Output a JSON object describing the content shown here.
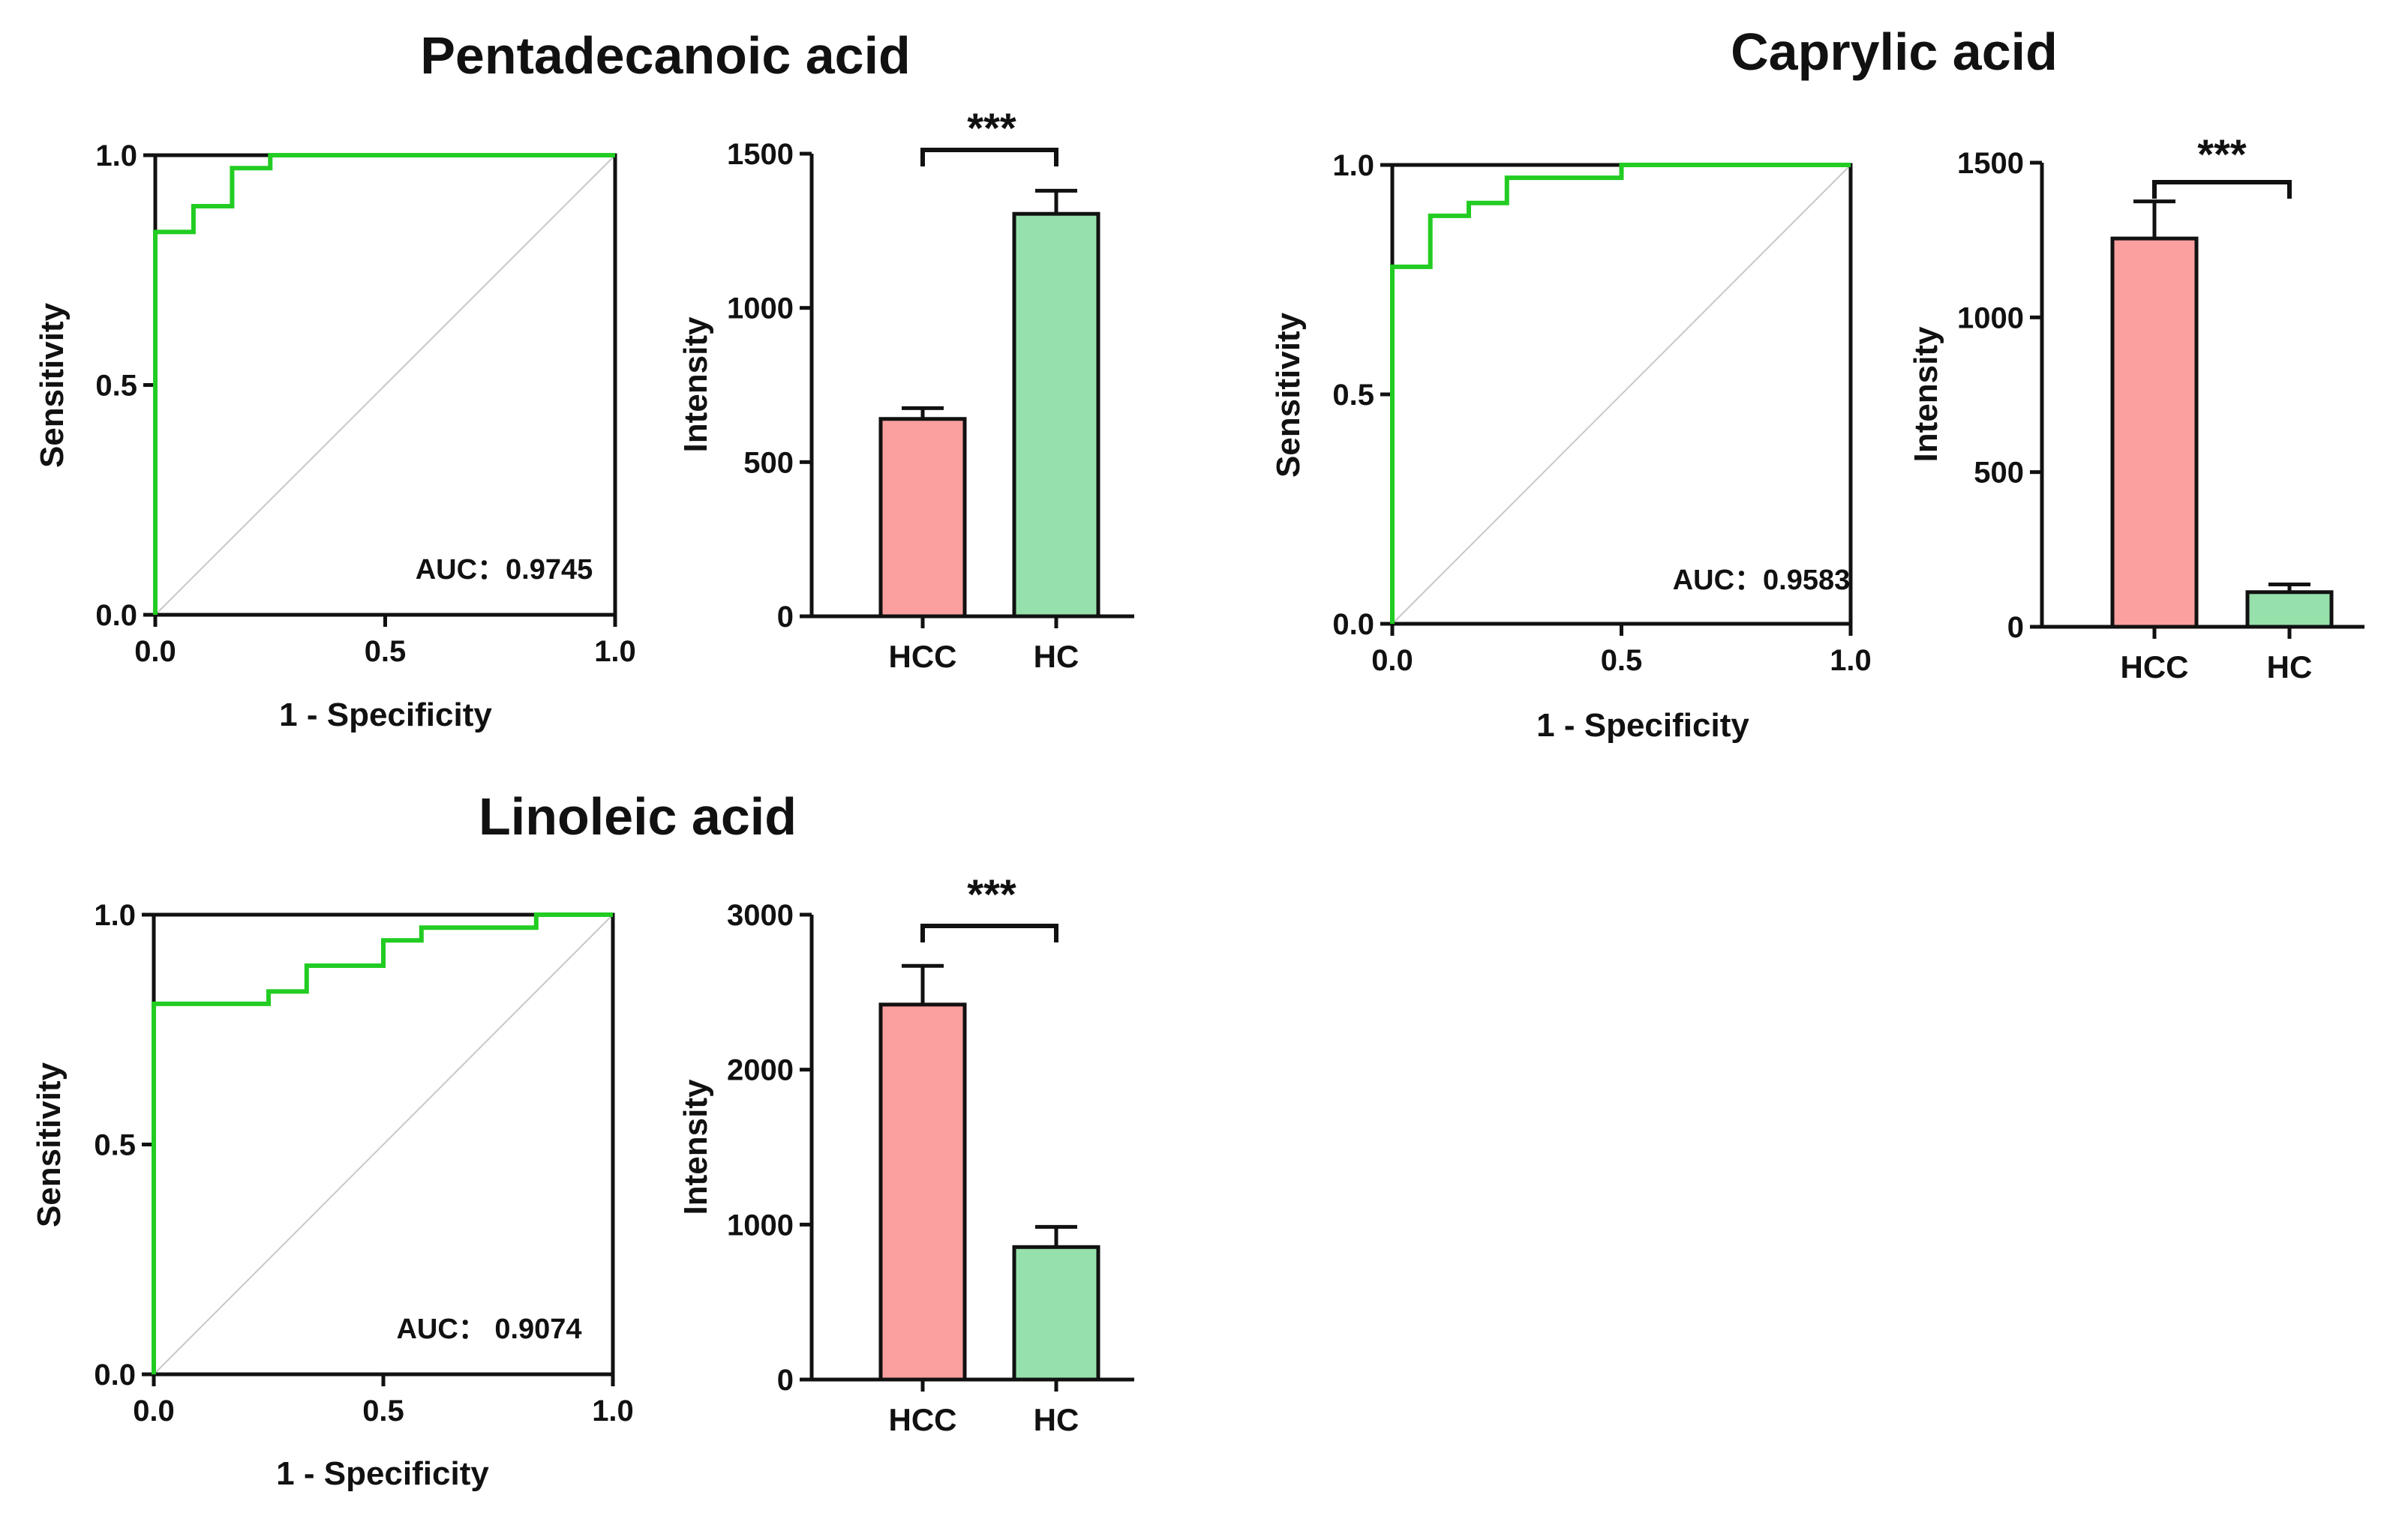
{
  "colors": {
    "roc_curve": "#22cc22",
    "diagonal": "#c8c8c8",
    "axis": "#111111",
    "hcc_bar": "#fc9f9f",
    "hc_bar": "#96e0ab"
  },
  "chart_data": [
    {
      "id": "pentadecanoic-roc",
      "type": "line",
      "subtype": "roc",
      "title": "Pentadecanoic acid",
      "xlabel": "1 - Specificity",
      "ylabel": "Sensitivity",
      "xlim": [
        0,
        1
      ],
      "ylim": [
        0,
        1
      ],
      "xticks": [
        "0.0",
        "0.5",
        "1.0"
      ],
      "yticks": [
        "0.0",
        "0.5",
        "1.0"
      ],
      "annotation": "AUC：0.9745",
      "series": [
        {
          "x": [
            0,
            0,
            0.083,
            0.083,
            0.167,
            0.167,
            0.25,
            0.25,
            1.0
          ],
          "y": [
            0,
            0.833,
            0.833,
            0.889,
            0.889,
            0.972,
            0.972,
            1.0,
            1.0
          ]
        }
      ]
    },
    {
      "id": "pentadecanoic-bar",
      "type": "bar",
      "ylabel": "Intensity",
      "ylim": [
        0,
        1500
      ],
      "yticks": [
        "0",
        "500",
        "1000",
        "1500"
      ],
      "categories": [
        "HCC",
        "HC"
      ],
      "values": [
        640,
        1305
      ],
      "errors": [
        35,
        75
      ],
      "significance": "***"
    },
    {
      "id": "caprylic-roc",
      "type": "line",
      "subtype": "roc",
      "title": "Caprylic acid",
      "xlabel": "1 - Specificity",
      "ylabel": "Sensitivity",
      "xlim": [
        0,
        1
      ],
      "ylim": [
        0,
        1
      ],
      "xticks": [
        "0.0",
        "0.5",
        "1.0"
      ],
      "yticks": [
        "0.0",
        "0.5",
        "1.0"
      ],
      "annotation": "AUC：0.9583",
      "series": [
        {
          "x": [
            0,
            0,
            0.083,
            0.083,
            0.167,
            0.167,
            0.25,
            0.25,
            0.5,
            0.5,
            1.0
          ],
          "y": [
            0,
            0.778,
            0.778,
            0.889,
            0.889,
            0.917,
            0.917,
            0.972,
            0.972,
            1.0,
            1.0
          ]
        }
      ]
    },
    {
      "id": "caprylic-bar",
      "type": "bar",
      "ylabel": "Intensity",
      "ylim": [
        0,
        1500
      ],
      "yticks": [
        "0",
        "500",
        "1000",
        "1500"
      ],
      "categories": [
        "HCC",
        "HC"
      ],
      "values": [
        1255,
        112
      ],
      "errors": [
        120,
        25
      ],
      "significance": "***"
    },
    {
      "id": "linoleic-roc",
      "type": "line",
      "subtype": "roc",
      "title": "Linoleic acid",
      "xlabel": "1 - Specificity",
      "ylabel": "Sensitivity",
      "xlim": [
        0,
        1
      ],
      "ylim": [
        0,
        1
      ],
      "xticks": [
        "0.0",
        "0.5",
        "1.0"
      ],
      "yticks": [
        "0.0",
        "0.5",
        "1.0"
      ],
      "annotation": "AUC： 0.9074",
      "series": [
        {
          "x": [
            0,
            0,
            0.25,
            0.25,
            0.333,
            0.333,
            0.5,
            0.5,
            0.583,
            0.583,
            0.833,
            0.833,
            1.0
          ],
          "y": [
            0,
            0.806,
            0.806,
            0.833,
            0.833,
            0.889,
            0.889,
            0.944,
            0.944,
            0.972,
            0.972,
            1.0,
            1.0
          ]
        }
      ]
    },
    {
      "id": "linoleic-bar",
      "type": "bar",
      "ylabel": "Intensity",
      "ylim": [
        0,
        3000
      ],
      "yticks": [
        "0",
        "1000",
        "2000",
        "3000"
      ],
      "categories": [
        "HCC",
        "HC"
      ],
      "values": [
        2420,
        855
      ],
      "errors": [
        250,
        130
      ],
      "significance": "***"
    }
  ]
}
